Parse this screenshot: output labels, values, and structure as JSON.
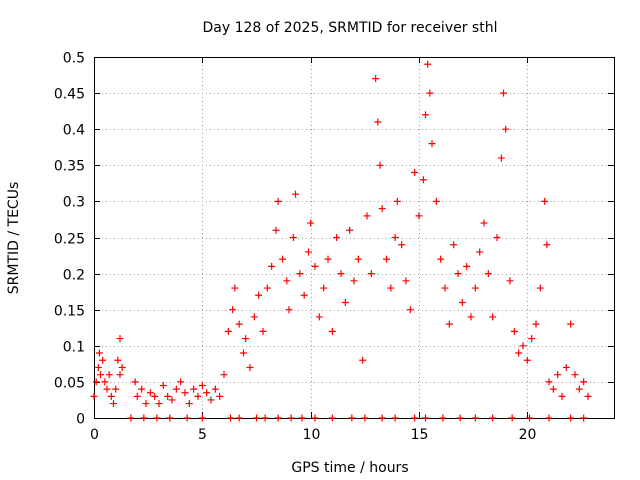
{
  "chart_data": {
    "type": "scatter",
    "title": "Day 128 of 2025, SRMTID for receiver sthl",
    "xlabel": "GPS time / hours",
    "ylabel": "SRMTID / TECUs",
    "xlim": [
      0,
      24
    ],
    "ylim": [
      0,
      0.5
    ],
    "grid": true,
    "marker": "+",
    "color": "#ff0000",
    "x_ticks": [
      0,
      5,
      10,
      15,
      20
    ],
    "x_tick_labels": [
      "0",
      "5",
      "10",
      "15",
      "20"
    ],
    "y_ticks": [
      0,
      0.05,
      0.1,
      0.15,
      0.2,
      0.25,
      0.3,
      0.35,
      0.4,
      0.45,
      0.5
    ],
    "y_tick_labels": [
      "0",
      "0.05",
      "0.1",
      "0.15",
      "0.2",
      "0.25",
      "0.3",
      "0.35",
      "0.4",
      "0.45",
      "0.5"
    ],
    "series": [
      {
        "name": "SRMTID",
        "points": [
          [
            0.0,
            0.03
          ],
          [
            0.1,
            0.05
          ],
          [
            0.2,
            0.07
          ],
          [
            0.25,
            0.09
          ],
          [
            0.3,
            0.06
          ],
          [
            0.4,
            0.08
          ],
          [
            0.5,
            0.05
          ],
          [
            0.6,
            0.04
          ],
          [
            0.7,
            0.06
          ],
          [
            0.8,
            0.03
          ],
          [
            0.9,
            0.02
          ],
          [
            1.0,
            0.04
          ],
          [
            1.1,
            0.08
          ],
          [
            1.2,
            0.11
          ],
          [
            1.3,
            0.07
          ],
          [
            1.2,
            0.06
          ],
          [
            1.7,
            0.0
          ],
          [
            1.9,
            0.05
          ],
          [
            2.0,
            0.03
          ],
          [
            2.2,
            0.04
          ],
          [
            2.4,
            0.02
          ],
          [
            2.6,
            0.035
          ],
          [
            2.8,
            0.03
          ],
          [
            3.0,
            0.02
          ],
          [
            3.2,
            0.045
          ],
          [
            3.4,
            0.03
          ],
          [
            3.6,
            0.025
          ],
          [
            3.8,
            0.04
          ],
          [
            4.0,
            0.05
          ],
          [
            4.2,
            0.035
          ],
          [
            4.4,
            0.02
          ],
          [
            4.6,
            0.04
          ],
          [
            4.8,
            0.03
          ],
          [
            5.0,
            0.045
          ],
          [
            5.2,
            0.035
          ],
          [
            5.4,
            0.025
          ],
          [
            5.6,
            0.04
          ],
          [
            5.8,
            0.03
          ],
          [
            2.3,
            0.0
          ],
          [
            2.9,
            0.0
          ],
          [
            3.5,
            0.0
          ],
          [
            4.3,
            0.0
          ],
          [
            5.0,
            0.0
          ],
          [
            6.0,
            0.06
          ],
          [
            6.2,
            0.12
          ],
          [
            6.4,
            0.15
          ],
          [
            6.5,
            0.18
          ],
          [
            6.7,
            0.13
          ],
          [
            6.9,
            0.09
          ],
          [
            7.0,
            0.11
          ],
          [
            7.2,
            0.07
          ],
          [
            7.4,
            0.14
          ],
          [
            7.6,
            0.17
          ],
          [
            7.8,
            0.12
          ],
          [
            8.0,
            0.18
          ],
          [
            8.2,
            0.21
          ],
          [
            8.4,
            0.26
          ],
          [
            8.5,
            0.3
          ],
          [
            8.7,
            0.22
          ],
          [
            8.9,
            0.19
          ],
          [
            9.0,
            0.15
          ],
          [
            9.2,
            0.25
          ],
          [
            9.3,
            0.31
          ],
          [
            9.5,
            0.2
          ],
          [
            9.7,
            0.17
          ],
          [
            9.9,
            0.23
          ],
          [
            10.0,
            0.27
          ],
          [
            10.2,
            0.21
          ],
          [
            10.4,
            0.14
          ],
          [
            10.6,
            0.18
          ],
          [
            10.8,
            0.22
          ],
          [
            11.0,
            0.12
          ],
          [
            11.2,
            0.25
          ],
          [
            11.4,
            0.2
          ],
          [
            11.6,
            0.16
          ],
          [
            11.8,
            0.26
          ],
          [
            12.0,
            0.19
          ],
          [
            12.2,
            0.22
          ],
          [
            12.4,
            0.08
          ],
          [
            12.6,
            0.28
          ],
          [
            12.8,
            0.2
          ],
          [
            13.0,
            0.47
          ],
          [
            13.1,
            0.41
          ],
          [
            13.2,
            0.35
          ],
          [
            13.3,
            0.29
          ],
          [
            13.5,
            0.22
          ],
          [
            13.7,
            0.18
          ],
          [
            13.9,
            0.25
          ],
          [
            14.0,
            0.3
          ],
          [
            14.2,
            0.24
          ],
          [
            14.4,
            0.19
          ],
          [
            14.6,
            0.15
          ],
          [
            14.8,
            0.34
          ],
          [
            15.0,
            0.28
          ],
          [
            15.2,
            0.33
          ],
          [
            15.3,
            0.42
          ],
          [
            15.4,
            0.49
          ],
          [
            15.5,
            0.45
          ],
          [
            15.6,
            0.38
          ],
          [
            15.8,
            0.3
          ],
          [
            16.0,
            0.22
          ],
          [
            16.2,
            0.18
          ],
          [
            16.4,
            0.13
          ],
          [
            16.6,
            0.24
          ],
          [
            16.8,
            0.2
          ],
          [
            17.0,
            0.16
          ],
          [
            17.2,
            0.21
          ],
          [
            17.4,
            0.14
          ],
          [
            17.6,
            0.18
          ],
          [
            17.8,
            0.23
          ],
          [
            18.0,
            0.27
          ],
          [
            18.2,
            0.2
          ],
          [
            18.4,
            0.14
          ],
          [
            18.6,
            0.25
          ],
          [
            18.8,
            0.36
          ],
          [
            18.9,
            0.45
          ],
          [
            19.0,
            0.4
          ],
          [
            19.2,
            0.19
          ],
          [
            19.4,
            0.12
          ],
          [
            19.6,
            0.09
          ],
          [
            19.8,
            0.1
          ],
          [
            20.0,
            0.08
          ],
          [
            20.2,
            0.11
          ],
          [
            20.4,
            0.13
          ],
          [
            20.6,
            0.18
          ],
          [
            20.8,
            0.3
          ],
          [
            20.9,
            0.24
          ],
          [
            21.0,
            0.05
          ],
          [
            21.2,
            0.04
          ],
          [
            21.4,
            0.06
          ],
          [
            21.6,
            0.03
          ],
          [
            21.8,
            0.07
          ],
          [
            22.0,
            0.13
          ],
          [
            22.2,
            0.06
          ],
          [
            22.4,
            0.04
          ],
          [
            22.6,
            0.05
          ],
          [
            22.8,
            0.03
          ],
          [
            6.3,
            0.0
          ],
          [
            6.7,
            0.0
          ],
          [
            7.5,
            0.0
          ],
          [
            7.9,
            0.0
          ],
          [
            8.5,
            0.0
          ],
          [
            9.1,
            0.0
          ],
          [
            9.6,
            0.0
          ],
          [
            10.2,
            0.0
          ],
          [
            11.0,
            0.0
          ],
          [
            11.9,
            0.0
          ],
          [
            12.5,
            0.0
          ],
          [
            13.3,
            0.0
          ],
          [
            13.9,
            0.0
          ],
          [
            14.8,
            0.0
          ],
          [
            15.3,
            0.0
          ],
          [
            16.1,
            0.0
          ],
          [
            16.9,
            0.0
          ],
          [
            17.6,
            0.0
          ],
          [
            18.4,
            0.0
          ],
          [
            19.3,
            0.0
          ],
          [
            20.1,
            0.0
          ],
          [
            21.0,
            0.0
          ],
          [
            22.0,
            0.0
          ],
          [
            22.6,
            0.0
          ]
        ]
      }
    ]
  }
}
